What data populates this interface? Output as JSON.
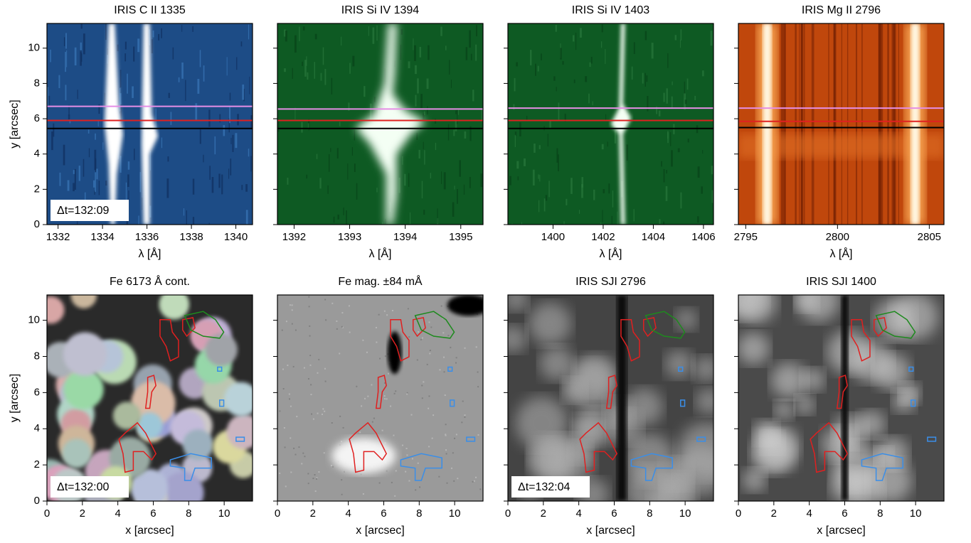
{
  "chart_data": [
    {
      "type": "image",
      "title": "IRIS C II 1335",
      "xlabel": "λ [Å]",
      "ylabel": "y [arcsec]",
      "xlim": [
        1331.5,
        1340.75
      ],
      "xticks": [
        1332,
        1334,
        1336,
        1338,
        1340
      ],
      "ylim": [
        0,
        11.4
      ],
      "yticks": [
        0,
        2,
        4,
        6,
        8,
        10
      ],
      "show_ytick_labels": true,
      "annotation": "Δt=132:09",
      "hlines": [
        {
          "color": "#e58ee5",
          "value": 6.7
        },
        {
          "color": "#e02020",
          "value": 5.9
        },
        {
          "color": "#000000",
          "value": 5.45
        }
      ]
    },
    {
      "type": "image",
      "title": "IRIS Si IV 1394",
      "xlabel": "λ [Å]",
      "xlim": [
        1391.7,
        1395.4
      ],
      "xticks": [
        1392,
        1393,
        1394,
        1395
      ],
      "ylim": [
        0,
        11.4
      ],
      "yticks": [
        0,
        2,
        4,
        6,
        8,
        10
      ],
      "show_ytick_labels": false,
      "hlines": [
        {
          "color": "#e58ee5",
          "value": 6.55
        },
        {
          "color": "#e02020",
          "value": 5.9
        },
        {
          "color": "#000000",
          "value": 5.45
        }
      ]
    },
    {
      "type": "image",
      "title": "IRIS Si IV 1403",
      "xlabel": "λ [Å]",
      "xlim": [
        1398.2,
        1406.4
      ],
      "xticks": [
        1400,
        1402,
        1404,
        1406
      ],
      "ylim": [
        0,
        11.4
      ],
      "yticks": [
        0,
        2,
        4,
        6,
        8,
        10
      ],
      "show_ytick_labels": false,
      "hlines": [
        {
          "color": "#e58ee5",
          "value": 6.6
        },
        {
          "color": "#e02020",
          "value": 5.9
        },
        {
          "color": "#000000",
          "value": 5.45
        }
      ]
    },
    {
      "type": "image",
      "title": "IRIS Mg II 2796",
      "xlabel": "λ [Å]",
      "xlim": [
        2794.6,
        2805.8
      ],
      "xticks": [
        2795,
        2800,
        2805
      ],
      "ylim": [
        0,
        11.4
      ],
      "yticks": [
        0,
        2,
        4,
        6,
        8,
        10
      ],
      "show_ytick_labels": false,
      "hlines": [
        {
          "color": "#e58ee5",
          "value": 6.6
        },
        {
          "color": "#e02020",
          "value": 5.85
        },
        {
          "color": "#000000",
          "value": 5.5
        }
      ]
    },
    {
      "type": "image",
      "title": "Fe 6173 Å cont.",
      "xlabel": "x [arcsec]",
      "ylabel": "y [arcsec]",
      "xlim": [
        0,
        11.6
      ],
      "xticks": [
        0,
        2,
        4,
        6,
        8,
        10
      ],
      "ylim": [
        0,
        11.4
      ],
      "yticks": [
        0,
        2,
        4,
        6,
        8,
        10
      ],
      "show_ytick_labels": true,
      "annotation": "Δt=132:00"
    },
    {
      "type": "image",
      "title": "Fe mag. ±84 mÅ",
      "xlabel": "x [arcsec]",
      "xlim": [
        0,
        11.6
      ],
      "xticks": [
        0,
        2,
        4,
        6,
        8,
        10
      ],
      "ylim": [
        0,
        11.4
      ],
      "yticks": [
        0,
        2,
        4,
        6,
        8,
        10
      ],
      "show_ytick_labels": false
    },
    {
      "type": "image",
      "title": "IRIS SJI 2796",
      "xlabel": "x [arcsec]",
      "xlim": [
        0,
        11.6
      ],
      "xticks": [
        0,
        2,
        4,
        6,
        8,
        10
      ],
      "ylim": [
        0,
        11.4
      ],
      "yticks": [
        0,
        2,
        4,
        6,
        8,
        10
      ],
      "show_ytick_labels": false,
      "annotation": "Δt=132:04"
    },
    {
      "type": "image",
      "title": "IRIS SJI 1400",
      "xlabel": "x [arcsec]",
      "xlim": [
        0,
        11.6
      ],
      "xticks": [
        0,
        2,
        4,
        6,
        8,
        10
      ],
      "ylim": [
        0,
        11.4
      ],
      "yticks": [
        0,
        2,
        4,
        6,
        8,
        10
      ],
      "show_ytick_labels": false
    }
  ]
}
